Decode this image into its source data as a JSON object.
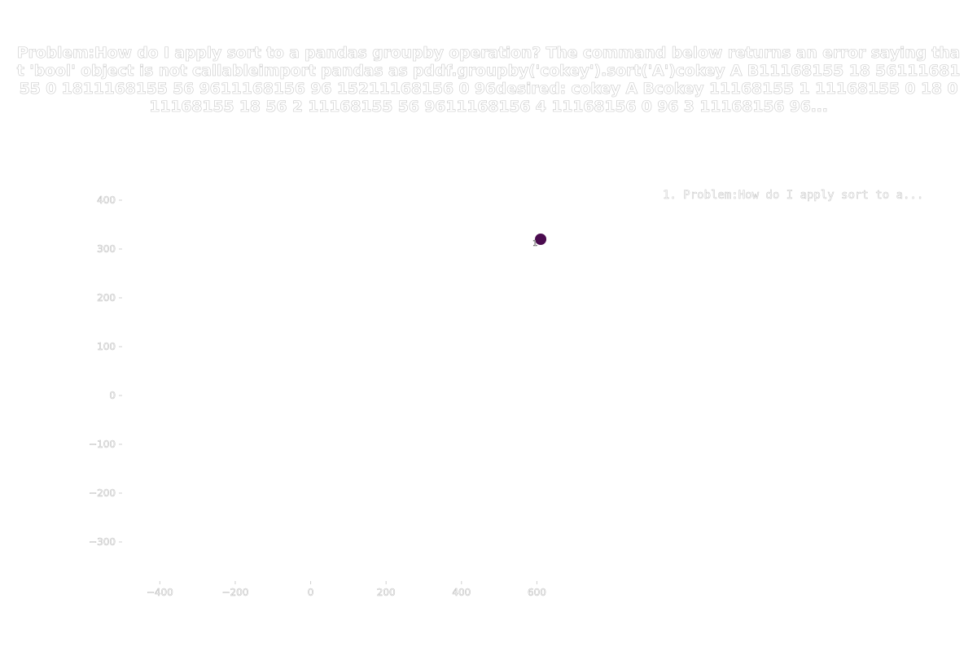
{
  "chart_data": {
    "type": "scatter",
    "title": "Problem:How do I apply sort to a pandas groupby operation? The command below returns an error saying that 'bool' object is not callableimport pandas as pddf.groupby('cokey').sort('A')cokey       A    B11168155    18   5611168155    0    1811168155    56   9611168156    96   15211168156    0    96desired:   cokey    A    Bcokey                              11168155 1  11168155    0   18         0  11168155   18   56         2  11168155   56   9611168156 4  11168156    0   96         3  11168156  96...",
    "legend": [
      "1. Problem:How do I apply sort to a..."
    ],
    "xlim": [
      -500,
      720
    ],
    "ylim": [
      -380,
      440
    ],
    "xticks": [
      -400,
      -200,
      0,
      200,
      400,
      600
    ],
    "yticks": [
      -300,
      -200,
      -100,
      0,
      100,
      200,
      300,
      400
    ],
    "xlabel": "",
    "ylabel": "",
    "grid": false,
    "series": [
      {
        "points": [
          {
            "x": 610,
            "y": 320,
            "label": "1"
          }
        ],
        "color": "#4b0c4f"
      }
    ]
  }
}
